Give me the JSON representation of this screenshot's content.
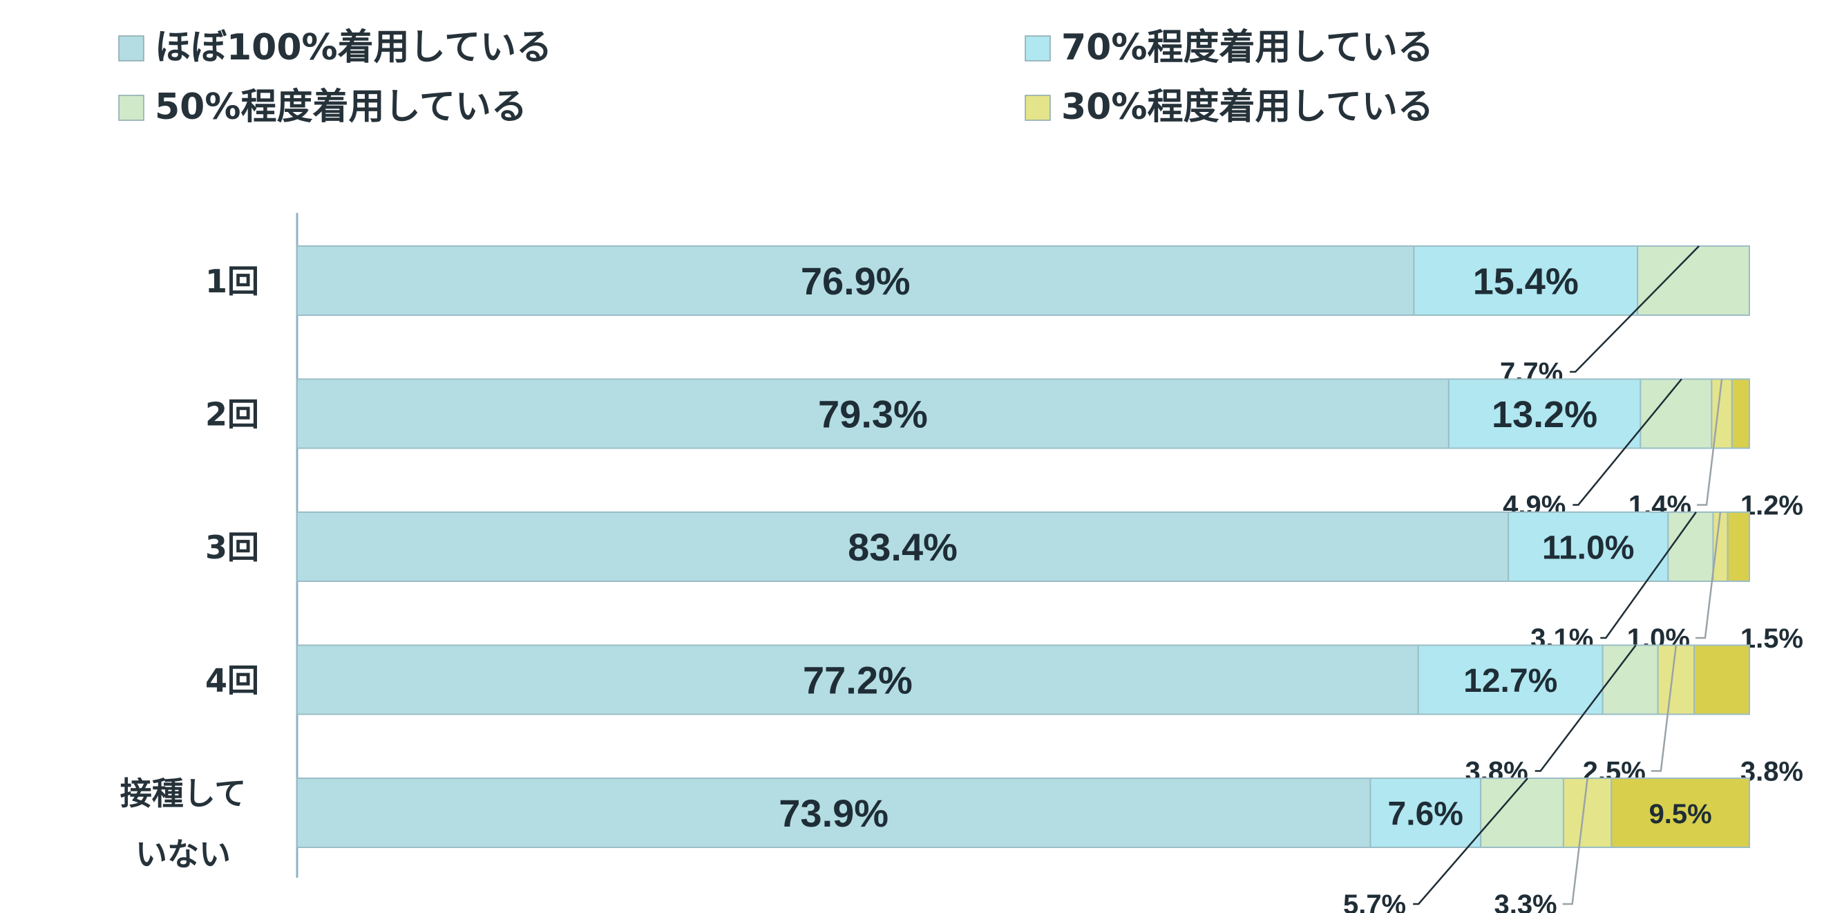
{
  "chart_data": {
    "type": "bar",
    "orientation": "horizontal",
    "stacked": true,
    "legend": "top",
    "grid": false,
    "xlim": [
      0,
      100
    ],
    "categories": [
      "1回",
      "2回",
      "3回",
      "4回",
      "接種していない"
    ],
    "category_lines": [
      [
        "1回"
      ],
      [
        "2回"
      ],
      [
        "3回"
      ],
      [
        "4回"
      ],
      [
        "接種して",
        "いない"
      ]
    ],
    "series": [
      {
        "name": "ほぼ100%着用している",
        "color": "#b3dde3",
        "values": [
          76.9,
          79.3,
          83.4,
          77.2,
          73.9
        ],
        "labels": [
          "76.9%",
          "79.3%",
          "83.4%",
          "77.2%",
          "73.9%"
        ]
      },
      {
        "name": "70%程度着用している",
        "color": "#b0e7f0",
        "values": [
          15.4,
          13.2,
          11.0,
          12.7,
          7.6
        ],
        "labels": [
          "15.4%",
          "13.2%",
          "11.0%",
          "12.7%",
          "7.6%"
        ]
      },
      {
        "name": "50%程度着用している",
        "color": "#cfe9c9",
        "values": [
          7.7,
          4.9,
          3.1,
          3.8,
          5.7
        ],
        "labels": [
          "7.7%",
          "4.9%",
          "3.1%",
          "3.8%",
          "5.7%"
        ]
      },
      {
        "name": "30%程度着用している",
        "color": "#e4e48a",
        "values": [
          0,
          1.4,
          1.0,
          2.5,
          3.3
        ],
        "labels": [
          "",
          "1.4%",
          "1.0%",
          "2.5%",
          "3.3%"
        ]
      },
      {
        "name": "",
        "color": "#d8cf4c",
        "values": [
          0,
          1.2,
          1.5,
          3.8,
          9.5
        ],
        "labels": [
          "",
          "1.2%",
          "1.5%",
          "3.8%",
          "9.5%"
        ]
      }
    ]
  }
}
